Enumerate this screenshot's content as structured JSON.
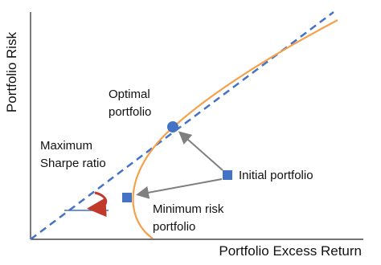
{
  "axes": {
    "x_label": "Portfolio Excess Return",
    "y_label": "Portfolio Risk"
  },
  "annotations": {
    "optimal": [
      "Optimal",
      "portfolio"
    ],
    "sharpe": [
      "Maximum",
      "Sharpe ratio"
    ],
    "initial": [
      "Initial portfolio"
    ],
    "minimum": [
      "Minimum risk",
      "portfolio"
    ]
  }
}
